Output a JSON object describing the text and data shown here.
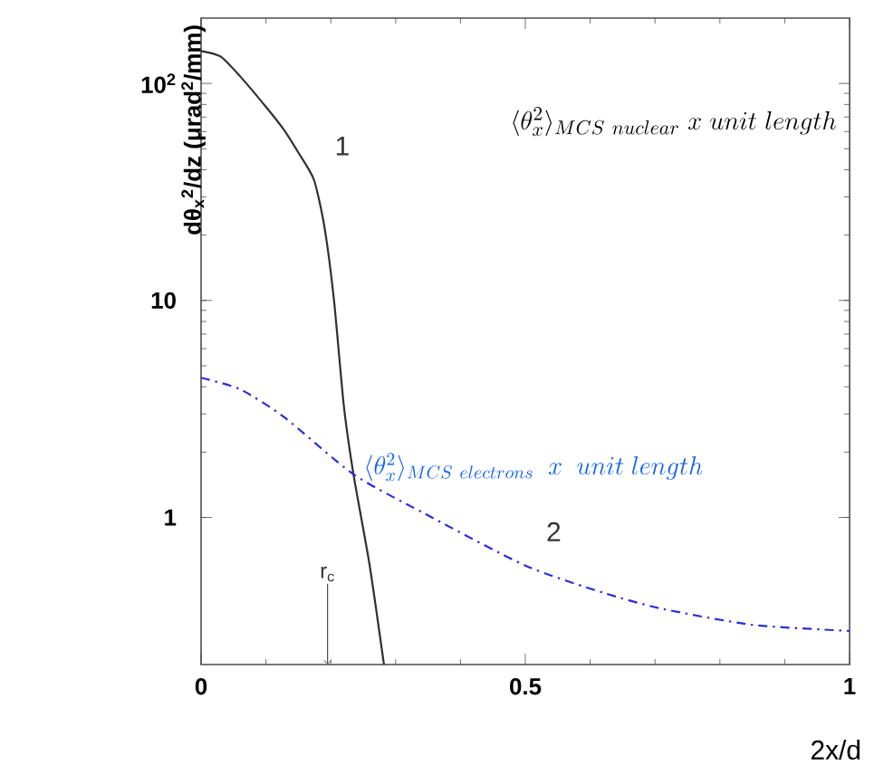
{
  "chart_data": {
    "type": "line",
    "xlabel": "2x/d",
    "ylabel": "dθ$_{x}$$^{2}$/dz  (μrad$^{2}$/mm)",
    "log": "y",
    "xlim": [
      0,
      1
    ],
    "ylim": [
      0.21,
      200
    ],
    "xticks": [
      0,
      0.5,
      1
    ],
    "yticks": [
      1,
      10,
      {
        "value": 100,
        "label": "10$^{2}$"
      }
    ],
    "marker": "none",
    "series": [
      {
        "color": "#303030",
        "line_style": "solid",
        "x": [
          0,
          0.03,
          0.06,
          0.1,
          0.128,
          0.15,
          0.174,
          0.19,
          0.205,
          0.22,
          0.235,
          0.26,
          0.282
        ],
        "values": [
          141,
          133,
          108,
          78,
          61,
          48,
          36,
          22,
          10,
          3.3,
          1.58,
          0.6,
          0.21
        ]
      },
      {
        "color": "#2b2bd9",
        "line_style": "dashdot",
        "x": [
          0,
          0.06,
          0.128,
          0.235,
          0.34,
          0.5,
          0.62,
          0.71,
          0.85,
          1
        ],
        "values": [
          4.4,
          3.9,
          2.9,
          1.58,
          1.06,
          0.6,
          0.45,
          0.38,
          0.32,
          0.3
        ]
      }
    ],
    "annotations": [
      "\\langle\\theta_{x}^{2}\\rangle_{MCS\\ nuclear}\\ x\\ unit\\ length",
      {
        "text": "1",
        "x": 0.174,
        "y": 36
      },
      {
        "text": "\\langle\\theta_{x}^{2}\\rangle_{MCS\\ electrons}\\ \\ x\\ \\ unit\\ length",
        "x": 0.235,
        "y": 1.58
      },
      {
        "text": "2",
        "x": 0.5,
        "y": 0.6
      },
      "r$_{c}$"
    ]
  }
}
